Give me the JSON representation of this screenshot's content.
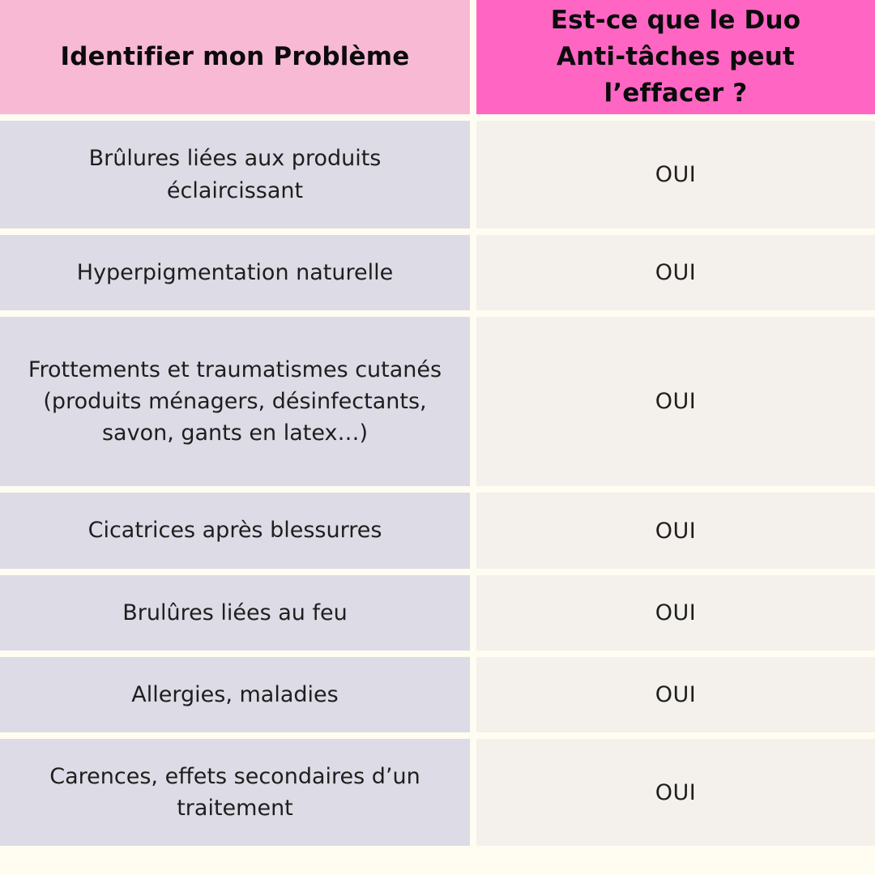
{
  "page": {
    "background_color": "#fffdf2",
    "type": "comparison-table-infographic"
  },
  "table": {
    "headers": [
      {
        "label": "Identifier mon Problème",
        "background_color": "#f8b9d5",
        "text_color": "#0b0b0b"
      },
      {
        "label": "Est-ce que le Duo Anti-tâches peut l’effacer ?",
        "background_color": "#ff66c4",
        "text_color": "#0b0b0b"
      }
    ],
    "rows": [
      {
        "problem": "Brûlures liées aux produits éclaircissant",
        "answer": "OUI"
      },
      {
        "problem": "Hyperpigmentation naturelle",
        "answer": "OUI"
      },
      {
        "problem": "Frottements et traumatismes cutanés (produits ménagers, désinfectants, savon, gants en latex…)",
        "answer": "OUI"
      },
      {
        "problem": "Cicatrices après blessurres",
        "answer": "OUI"
      },
      {
        "problem": "Brulûres liées au feu",
        "answer": "OUI"
      },
      {
        "problem": "Allergies, maladies",
        "answer": "OUI"
      },
      {
        "problem": "Carences, effets secondaires d’un traitement",
        "answer": "OUI"
      }
    ],
    "cell_colors": {
      "problem_cell_background": "#dcdbe6",
      "answer_cell_background": "#f4f1ec",
      "gap_color": "#fffdf2"
    }
  }
}
